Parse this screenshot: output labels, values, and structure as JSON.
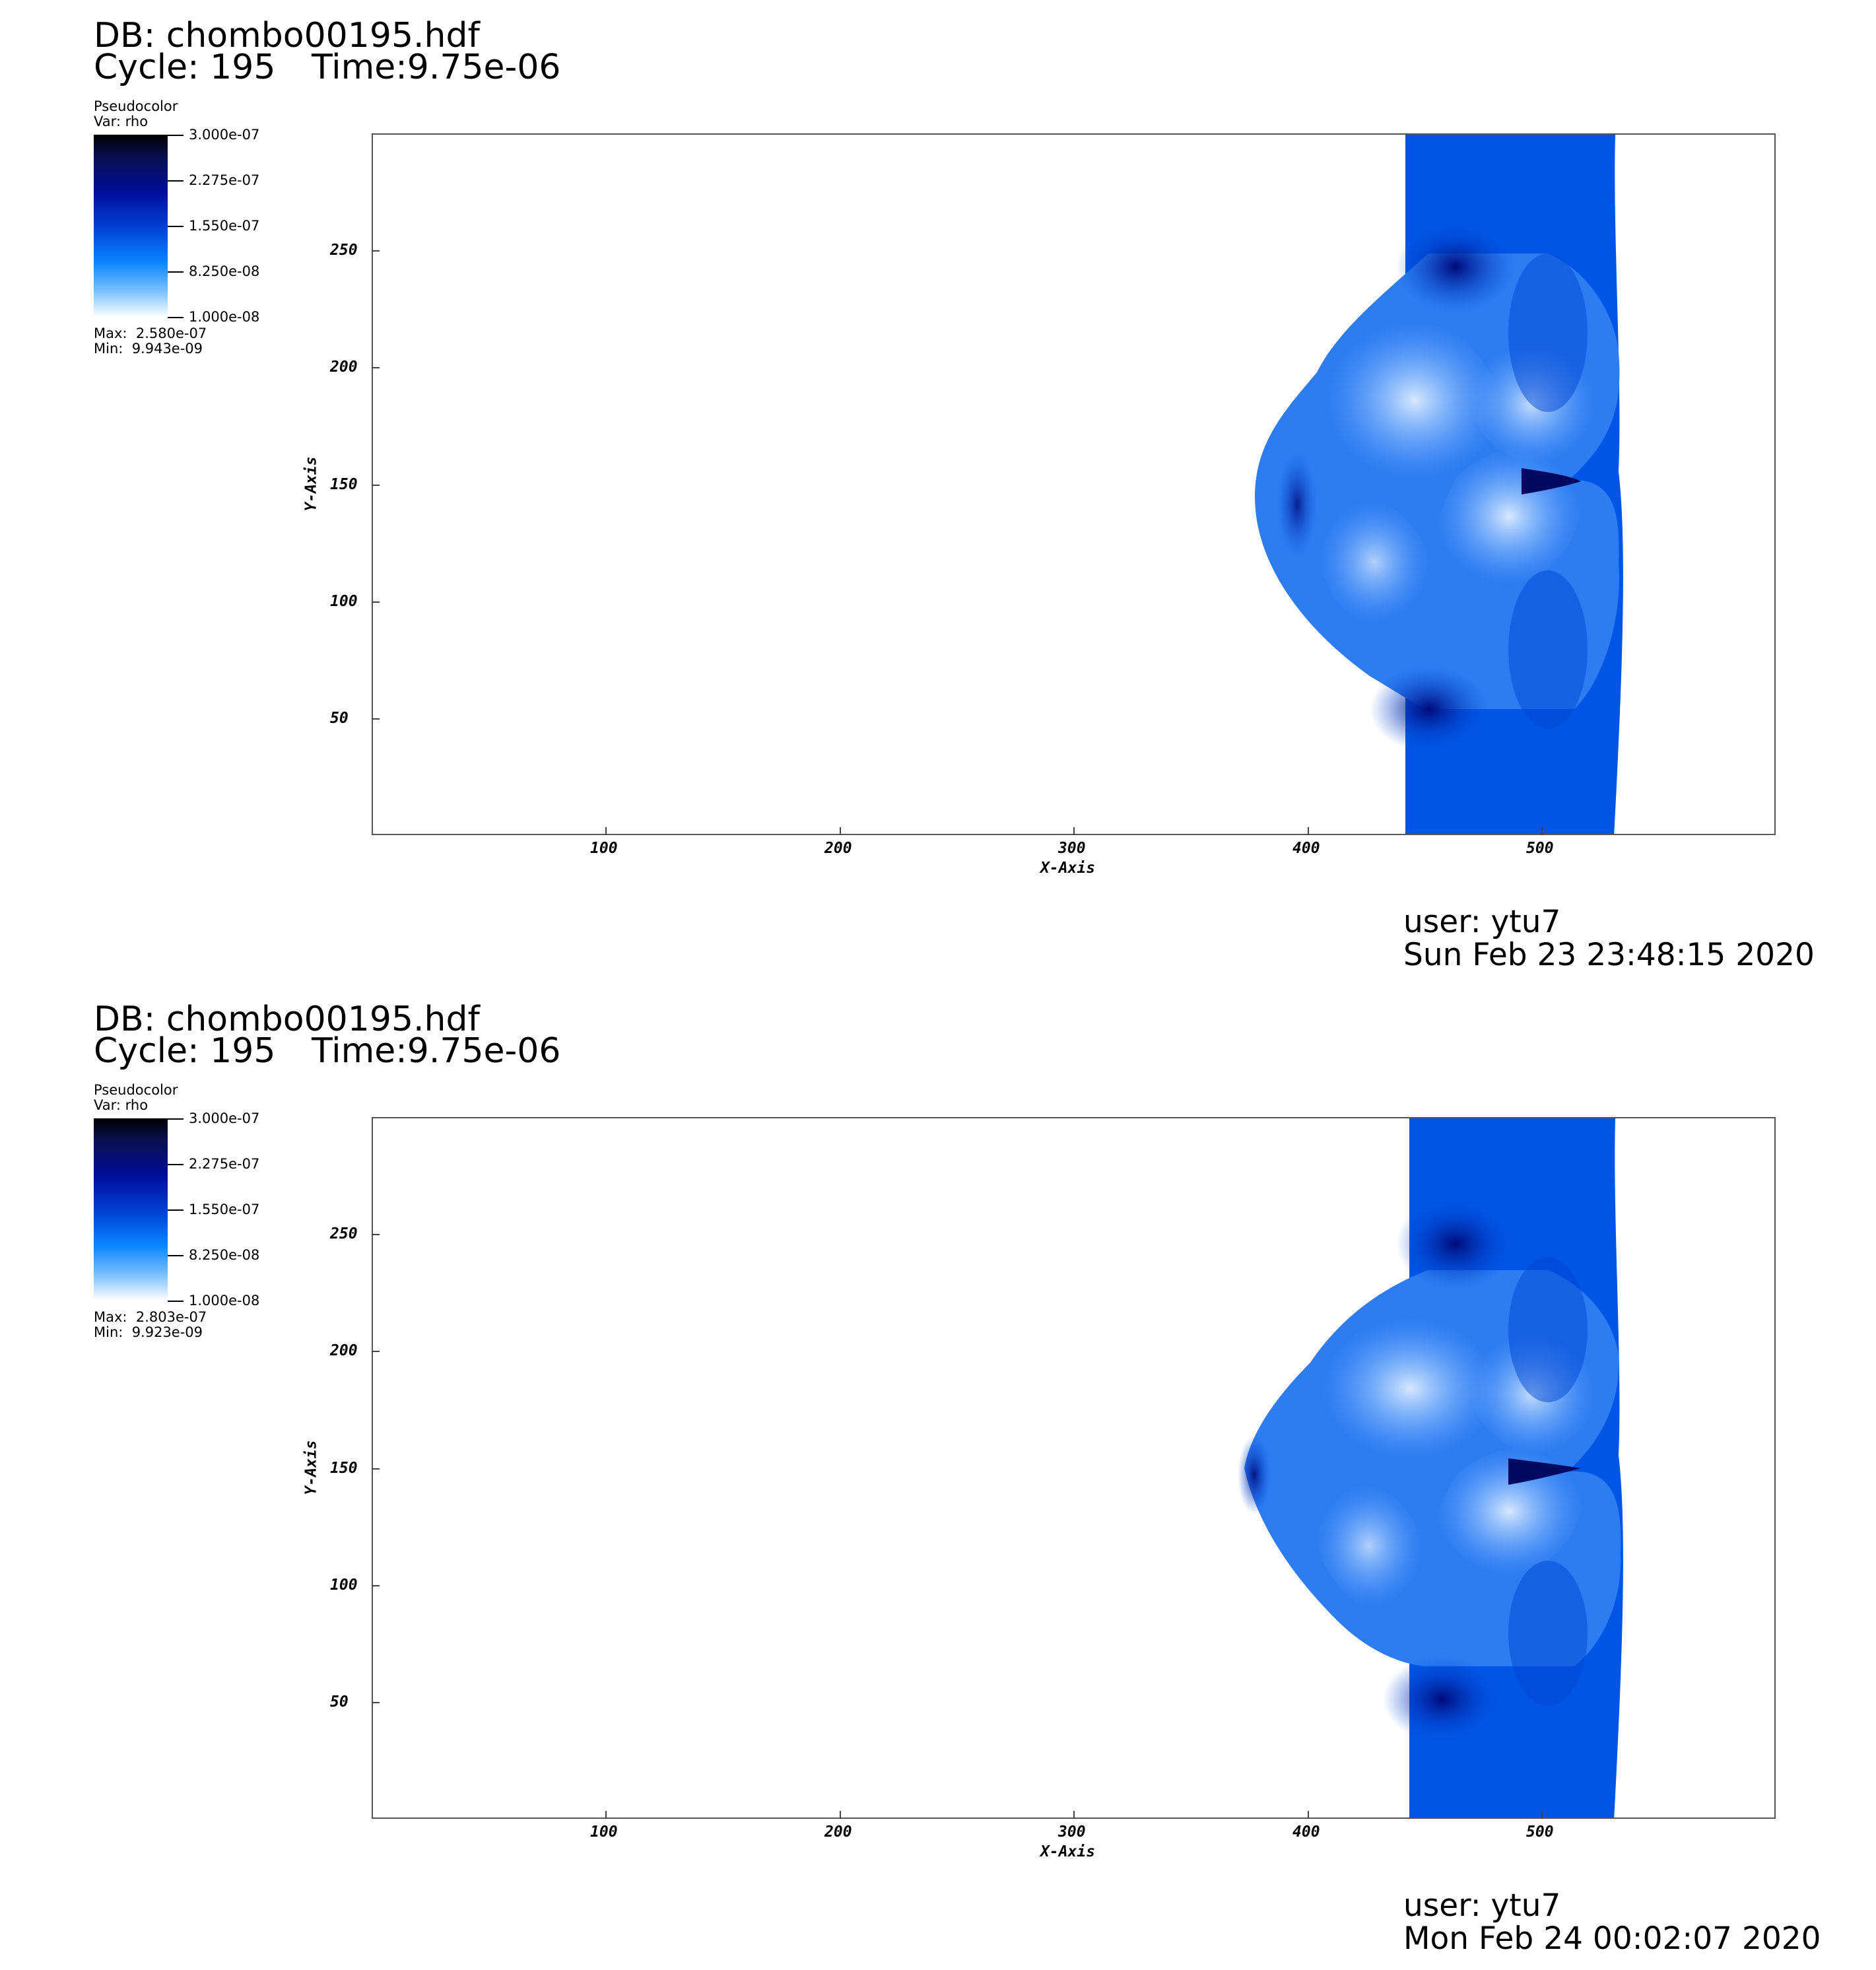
{
  "panels": [
    {
      "db": "DB: chombo00195.hdf",
      "cycle": "Cycle: 195",
      "time": "Time:9.75e-06",
      "legend": {
        "plot": "Pseudocolor",
        "var": "Var: rho",
        "ticks": [
          "3.000e-07",
          "2.275e-07",
          "1.550e-07",
          "8.250e-08",
          "1.000e-08"
        ],
        "max": "Max:  2.580e-07",
        "min": "Min:  9.943e-09"
      },
      "user": "user: ytu7",
      "date": "Sun Feb 23 23:48:15 2020"
    },
    {
      "db": "DB: chombo00195.hdf",
      "cycle": "Cycle: 195",
      "time": "Time:9.75e-06",
      "legend": {
        "plot": "Pseudocolor",
        "var": "Var: rho",
        "ticks": [
          "3.000e-07",
          "2.275e-07",
          "1.550e-07",
          "8.250e-08",
          "1.000e-08"
        ],
        "max": "Max:  2.803e-07",
        "min": "Min:  9.923e-09"
      },
      "user": "user: ytu7",
      "date": "Mon Feb 24 00:02:07 2020"
    }
  ],
  "chart_data": [
    {
      "type": "heatmap",
      "variable": "rho",
      "colormap": [
        "#ffffff",
        "#0a86ff",
        "#0044d8",
        "#000e9c",
        "#000000"
      ],
      "xlabel": "X-Axis",
      "ylabel": "Y-Axis",
      "xlim": [
        0,
        600
      ],
      "ylim": [
        0,
        300
      ],
      "xticks": [
        100,
        200,
        300,
        400,
        500
      ],
      "yticks": [
        50,
        100,
        150,
        200,
        250
      ],
      "colorbar_range": [
        1e-08,
        3e-07
      ],
      "data_max": 2.58e-07,
      "data_min": 9.943e-09
    },
    {
      "type": "heatmap",
      "variable": "rho",
      "colormap": [
        "#ffffff",
        "#0a86ff",
        "#0044d8",
        "#000e9c",
        "#000000"
      ],
      "xlabel": "X-Axis",
      "ylabel": "Y-Axis",
      "xlim": [
        0,
        600
      ],
      "ylim": [
        0,
        300
      ],
      "xticks": [
        100,
        200,
        300,
        400,
        500
      ],
      "yticks": [
        50,
        100,
        150,
        200,
        250
      ],
      "colorbar_range": [
        1e-08,
        3e-07
      ],
      "data_max": 2.803e-07,
      "data_min": 9.923e-09
    }
  ]
}
